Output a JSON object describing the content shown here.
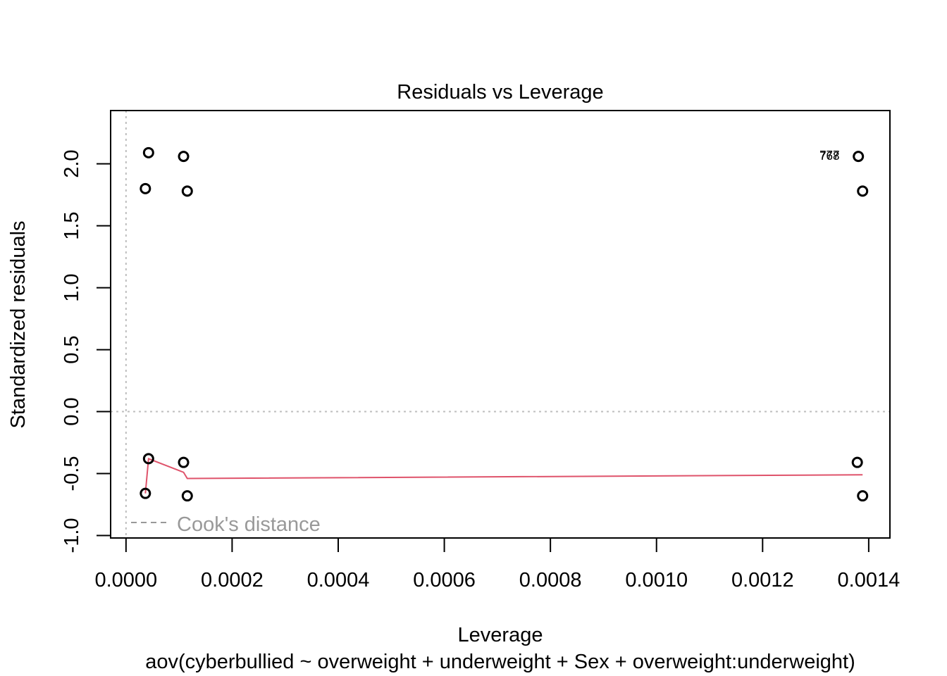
{
  "chart_data": {
    "type": "scatter",
    "title": "Residuals vs Leverage",
    "xlabel": "Leverage",
    "subtitle": "aov(cyberbullied ~ overweight + underweight + Sex + overweight:underweight)",
    "ylabel": "Standardized residuals",
    "xlim": [
      -2.9e-05,
      0.00144
    ],
    "ylim": [
      -1.02,
      2.43
    ],
    "x_ticks": [
      0.0,
      0.0002,
      0.0004,
      0.0006,
      0.0008,
      0.001,
      0.0012,
      0.0014
    ],
    "x_tick_labels": [
      "0.0000",
      "0.0002",
      "0.0004",
      "0.0006",
      "0.0008",
      "0.0010",
      "0.0012",
      "0.0014"
    ],
    "y_ticks": [
      -1.0,
      -0.5,
      0.0,
      0.5,
      1.0,
      1.5,
      2.0
    ],
    "y_tick_labels": [
      "-1.0",
      "-0.5",
      "0.0",
      "0.5",
      "1.0",
      "1.5",
      "2.0"
    ],
    "points": [
      {
        "x": 4.25e-05,
        "y": 2.09
      },
      {
        "x": 0.0001085,
        "y": 2.06
      },
      {
        "x": 3.65e-05,
        "y": 1.8
      },
      {
        "x": 0.0001155,
        "y": 1.78
      },
      {
        "x": 0.0013805,
        "y": 2.06
      },
      {
        "x": 0.0013885,
        "y": 1.78
      },
      {
        "x": 4.25e-05,
        "y": -0.38
      },
      {
        "x": 0.0001085,
        "y": -0.41
      },
      {
        "x": 3.65e-05,
        "y": -0.66
      },
      {
        "x": 0.0001155,
        "y": -0.68
      },
      {
        "x": 0.0013785,
        "y": -0.41
      },
      {
        "x": 0.0013885,
        "y": -0.68
      }
    ],
    "point_labels": [
      {
        "text": "777",
        "x": 0.001345,
        "y": 2.075
      },
      {
        "text": "768",
        "x": 0.001345,
        "y": 2.065
      }
    ],
    "smooth_line": {
      "color": "#DF536B",
      "x": [
        3.65e-05,
        4.25e-05,
        0.0001085,
        0.0001155,
        0.0013885
      ],
      "y": [
        -0.66,
        -0.38,
        -0.49,
        -0.54,
        -0.51
      ]
    },
    "reference_lines": {
      "h": 0.0,
      "v": 0.0,
      "color": "#BEBEBE"
    },
    "legend": {
      "label": "Cook's distance",
      "position": "bottom-left",
      "color": "#999999"
    },
    "grid": false
  }
}
